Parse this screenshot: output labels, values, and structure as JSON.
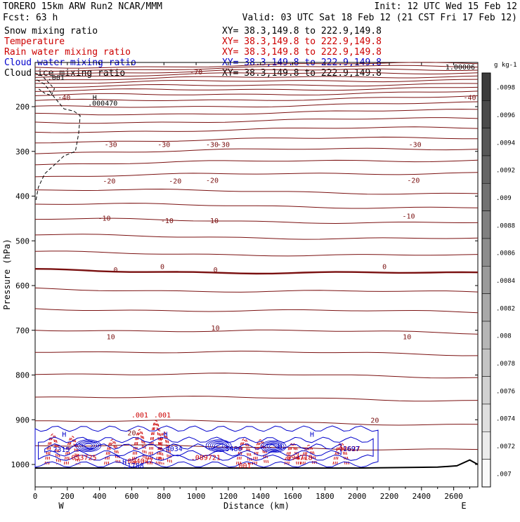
{
  "header": {
    "title_left": "TORERO  15km ARW   Run2    NCAR/MMM",
    "init": "Init: 12 UTC Wed 15 Feb 12",
    "fcst": "Fcst:   63 h",
    "valid": "Valid: 03 UTC Sat 18 Feb 12 (21 CST Fri 17 Feb 12)"
  },
  "fields": [
    {
      "name": "Snow mixing ratio",
      "xy": "XY=  38.3,149.8 to 222.9,149.8",
      "color": "#000000"
    },
    {
      "name": "Temperature",
      "xy": "XY=  38.3,149.8 to 222.9,149.8",
      "color": "#cc0000"
    },
    {
      "name": "Rain water mixing ratio",
      "xy": "XY=  38.3,149.8 to 222.9,149.8",
      "color": "#cc0000"
    },
    {
      "name": "Cloud water mixing ratio",
      "xy": "XY=  38.3,149.8 to 222.9,149.8",
      "color": "#0000cc"
    },
    {
      "name": "Cloud ice mixing ratio",
      "xy": "XY=  38.3,149.8 to 222.9,149.8",
      "color": "#000000"
    }
  ],
  "chart_data": {
    "type": "cross-section",
    "xlabel": "Distance (km)",
    "ylabel": "Pressure (hPa)",
    "xlim": [
      0,
      2750
    ],
    "ylim": [
      1050,
      100
    ],
    "x_ticks": [
      0,
      200,
      400,
      600,
      800,
      1000,
      1200,
      1400,
      1600,
      1800,
      2000,
      2200,
      2400,
      2600
    ],
    "y_ticks": [
      200,
      300,
      400,
      500,
      600,
      700,
      800,
      900,
      1000
    ],
    "endpoints": {
      "left": "W",
      "right": "E"
    },
    "temperature_labels": [
      {
        "text": "-70",
        "x": 1000,
        "p": 128
      },
      {
        "text": "-40",
        "x": 180,
        "p": 185
      },
      {
        "text": "-40",
        "x": 2700,
        "p": 185
      },
      {
        "text": "-30",
        "x": 470,
        "p": 290
      },
      {
        "text": "-30",
        "x": 800,
        "p": 290
      },
      {
        "text": "-30",
        "x": 1100,
        "p": 290
      },
      {
        "text": "-30",
        "x": 1170,
        "p": 290
      },
      {
        "text": "-30",
        "x": 2360,
        "p": 290
      },
      {
        "text": "-20",
        "x": 460,
        "p": 372
      },
      {
        "text": "-20",
        "x": 870,
        "p": 372
      },
      {
        "text": "-20",
        "x": 1100,
        "p": 370
      },
      {
        "text": "-20",
        "x": 2350,
        "p": 370
      },
      {
        "text": "-10",
        "x": 430,
        "p": 455
      },
      {
        "text": "-10",
        "x": 820,
        "p": 460
      },
      {
        "text": "-10",
        "x": 1100,
        "p": 460
      },
      {
        "text": "-10",
        "x": 2320,
        "p": 450
      },
      {
        "text": "0",
        "x": 500,
        "p": 570
      },
      {
        "text": "0",
        "x": 790,
        "p": 563
      },
      {
        "text": "0",
        "x": 1120,
        "p": 570
      },
      {
        "text": "0",
        "x": 2170,
        "p": 563
      },
      {
        "text": "10",
        "x": 470,
        "p": 720
      },
      {
        "text": "10",
        "x": 1120,
        "p": 700
      },
      {
        "text": "10",
        "x": 2310,
        "p": 720
      },
      {
        "text": "20",
        "x": 2110,
        "p": 907
      },
      {
        "text": "20",
        "x": 600,
        "p": 935
      }
    ],
    "snow_labels": [
      {
        "text": ".001",
        "x": 130,
        "p": 140
      },
      {
        "text": "H",
        "x": 370,
        "p": 185
      },
      {
        "text": ".000470",
        "x": 420,
        "p": 198
      }
    ],
    "rain_labels": [
      {
        "text": ".001",
        "x": 650,
        "p": 895
      },
      {
        "text": ".001",
        "x": 790,
        "p": 895
      },
      {
        "text": ".053725",
        "x": 290,
        "p": 990
      },
      {
        "text": ".094077",
        "x": 640,
        "p": 998
      },
      {
        "text": ".089721",
        "x": 1060,
        "p": 990
      },
      {
        "text": ".001",
        "x": 1290,
        "p": 1008
      },
      {
        "text": ".094718",
        "x": 1630,
        "p": 990
      },
      {
        "text": ".12627",
        "x": 1940,
        "p": 970
      }
    ],
    "cloud_water_labels": [
      {
        "text": "H",
        "x": 180,
        "p": 938
      },
      {
        "text": ".2315",
        "x": 150,
        "p": 972
      },
      {
        "text": "H",
        "x": 555,
        "p": 1000
      },
      {
        "text": ".1788",
        "x": 610,
        "p": 1008
      },
      {
        "text": "H",
        "x": 810,
        "p": 938
      },
      {
        "text": ".4034",
        "x": 850,
        "p": 970
      },
      {
        "text": ".5480",
        "x": 1220,
        "p": 970
      },
      {
        "text": "H",
        "x": 1520,
        "p": 965
      },
      {
        "text": ".1697",
        "x": 1950,
        "p": 970
      },
      {
        "text": "H",
        "x": 1720,
        "p": 938
      }
    ],
    "top_label": "1.00006",
    "colorbar": {
      "units": "g kg-1",
      "ticks": [
        ".0098",
        ".0096",
        ".0094",
        ".0092",
        ".009",
        ".0088",
        ".0086",
        ".0084",
        ".0082",
        ".008",
        ".0078",
        ".0076",
        ".0074",
        ".0072",
        ".007"
      ]
    }
  },
  "colors": {
    "temperature": "#7a1010",
    "rain": "#cc0000",
    "cloud_water": "#0000cc",
    "snow": "#000000"
  }
}
